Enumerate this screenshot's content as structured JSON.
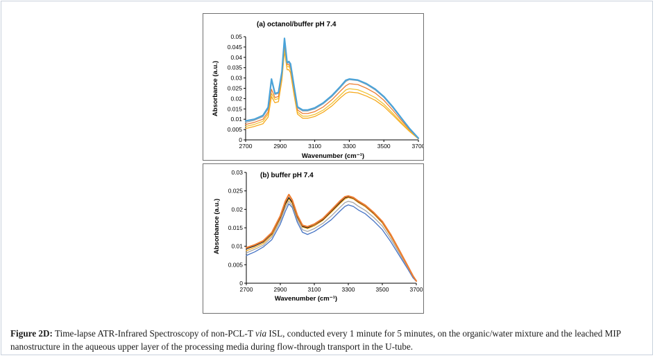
{
  "caption": {
    "lead": "Figure 2D:",
    "text_before_italic": " Time-lapse ATR-Infrared Spectroscopy of non-PCL-T ",
    "italic": "via",
    "text_after_italic": " ISL, conducted every 1 minute for 5 minutes, on the organic/water mixture and the leached MIP nanostructure in the aqueous upper layer of the processing media during flow-through transport in the U-tube."
  },
  "chart_data": [
    {
      "type": "line",
      "title": "(a) octanol/buffer pH 7.4",
      "xlabel": "Wavenumber (cm⁻¹)",
      "ylabel": "Absorbance (a.u.)",
      "xlim": [
        2700,
        3700
      ],
      "ylim": [
        0,
        0.05
      ],
      "xticks": [
        2700,
        2900,
        3100,
        3300,
        3500,
        3700
      ],
      "yticks": [
        0,
        0.005,
        0.01,
        0.015,
        0.02,
        0.025,
        0.03,
        0.035,
        0.04,
        0.045,
        0.05
      ],
      "ytick_labels": [
        "0",
        "0.005",
        "0.01",
        "0.015",
        "0.02",
        "0.025",
        "0.03",
        "0.035",
        "0.04",
        "0.045",
        "0.05"
      ],
      "x": [
        2700,
        2750,
        2800,
        2830,
        2850,
        2870,
        2890,
        2910,
        2925,
        2940,
        2950,
        2960,
        2980,
        3000,
        3030,
        3060,
        3100,
        3150,
        3200,
        3250,
        3280,
        3300,
        3350,
        3400,
        3450,
        3500,
        3550,
        3600,
        3650,
        3700
      ],
      "series": [
        {
          "color": "#f6a81c",
          "values": [
            0.0055,
            0.0065,
            0.0078,
            0.011,
            0.021,
            0.018,
            0.0185,
            0.029,
            0.043,
            0.034,
            0.034,
            0.0325,
            0.022,
            0.0125,
            0.0105,
            0.0105,
            0.0113,
            0.0135,
            0.0165,
            0.0205,
            0.0226,
            0.0232,
            0.0228,
            0.0212,
            0.0192,
            0.0162,
            0.0122,
            0.008,
            0.004,
            0.0005
          ]
        },
        {
          "color": "#f1c232",
          "values": [
            0.0065,
            0.0075,
            0.009,
            0.0125,
            0.0225,
            0.0195,
            0.02,
            0.0305,
            0.0445,
            0.0355,
            0.0355,
            0.034,
            0.0235,
            0.0135,
            0.0115,
            0.0115,
            0.0123,
            0.0145,
            0.0178,
            0.0218,
            0.0242,
            0.0248,
            0.0243,
            0.0226,
            0.0205,
            0.0173,
            0.0131,
            0.0086,
            0.0043,
            0.0006
          ]
        },
        {
          "color": "#ed7d31",
          "values": [
            0.0075,
            0.0085,
            0.01,
            0.0135,
            0.0245,
            0.0205,
            0.021,
            0.0315,
            0.0465,
            0.0365,
            0.0365,
            0.035,
            0.0245,
            0.0145,
            0.0128,
            0.0128,
            0.0137,
            0.016,
            0.0195,
            0.0238,
            0.0262,
            0.0272,
            0.0268,
            0.025,
            0.0227,
            0.0192,
            0.0146,
            0.0096,
            0.0048,
            0.0007
          ]
        },
        {
          "color": "#a5a5a5",
          "values": [
            0.0085,
            0.0095,
            0.0112,
            0.015,
            0.0285,
            0.022,
            0.0225,
            0.0325,
            0.048,
            0.037,
            0.0375,
            0.036,
            0.0258,
            0.0155,
            0.014,
            0.014,
            0.015,
            0.0175,
            0.021,
            0.0255,
            0.0283,
            0.0292,
            0.0287,
            0.0268,
            0.0242,
            0.0206,
            0.0158,
            0.0104,
            0.0052,
            0.0008
          ]
        },
        {
          "color": "#4aa3d9",
          "values": [
            0.0092,
            0.01,
            0.0118,
            0.0158,
            0.0295,
            0.0225,
            0.023,
            0.033,
            0.0492,
            0.0375,
            0.038,
            0.0368,
            0.0262,
            0.016,
            0.0145,
            0.0145,
            0.0155,
            0.018,
            0.0215,
            0.026,
            0.0289,
            0.0295,
            0.029,
            0.0272,
            0.0246,
            0.021,
            0.0162,
            0.0107,
            0.0054,
            0.0008
          ]
        }
      ]
    },
    {
      "type": "line",
      "title": "(b) buffer pH 7.4",
      "xlabel": "Wavenumber (cm⁻¹)",
      "ylabel": "Absorbance (a.u.)",
      "xlim": [
        2700,
        3700
      ],
      "ylim": [
        0,
        0.03
      ],
      "xticks": [
        2700,
        2900,
        3100,
        3300,
        3500,
        3700
      ],
      "yticks": [
        0,
        0.005,
        0.01,
        0.015,
        0.02,
        0.025,
        0.03
      ],
      "ytick_labels": [
        "0",
        "0.005",
        "0.01",
        "0.015",
        "0.02",
        "0.025",
        "0.03"
      ],
      "x": [
        2700,
        2750,
        2800,
        2850,
        2900,
        2930,
        2950,
        2970,
        3000,
        3030,
        3060,
        3100,
        3150,
        3200,
        3250,
        3280,
        3300,
        3330,
        3360,
        3400,
        3450,
        3500,
        3550,
        3600,
        3650,
        3680,
        3700
      ],
      "series": [
        {
          "color": "#4472c4",
          "values": [
            0.0075,
            0.0085,
            0.0098,
            0.0118,
            0.016,
            0.0195,
            0.0215,
            0.0205,
            0.0165,
            0.0138,
            0.0132,
            0.014,
            0.0155,
            0.0172,
            0.0195,
            0.0208,
            0.0212,
            0.0208,
            0.0198,
            0.0188,
            0.0168,
            0.0145,
            0.0112,
            0.0075,
            0.0038,
            0.0015,
            0.0005
          ]
        },
        {
          "color": "#a5a5a5",
          "values": [
            0.0082,
            0.0092,
            0.0103,
            0.0125,
            0.0168,
            0.0205,
            0.0222,
            0.021,
            0.0172,
            0.0145,
            0.014,
            0.0148,
            0.0162,
            0.0182,
            0.0205,
            0.0218,
            0.0222,
            0.0218,
            0.0208,
            0.0197,
            0.0178,
            0.0155,
            0.012,
            0.0081,
            0.0042,
            0.0018,
            0.0006
          ]
        },
        {
          "color": "#f6a81c",
          "values": [
            0.0088,
            0.0097,
            0.0108,
            0.013,
            0.0175,
            0.0212,
            0.0228,
            0.0216,
            0.0178,
            0.0152,
            0.0148,
            0.0155,
            0.017,
            0.0192,
            0.0215,
            0.0228,
            0.0232,
            0.0228,
            0.0218,
            0.0207,
            0.0187,
            0.0163,
            0.0127,
            0.0086,
            0.0045,
            0.002,
            0.0006
          ]
        },
        {
          "color": "#1a1a1a",
          "values": [
            0.0093,
            0.0101,
            0.0112,
            0.0134,
            0.0178,
            0.0215,
            0.0232,
            0.0219,
            0.018,
            0.0154,
            0.015,
            0.0158,
            0.0172,
            0.0195,
            0.0218,
            0.0231,
            0.0234,
            0.023,
            0.022,
            0.0209,
            0.0189,
            0.0165,
            0.0129,
            0.0088,
            0.0046,
            0.002,
            0.0006
          ]
        },
        {
          "color": "#ed7d31",
          "values": [
            0.0096,
            0.0104,
            0.0115,
            0.0137,
            0.0182,
            0.0222,
            0.024,
            0.0225,
            0.0184,
            0.0157,
            0.0153,
            0.016,
            0.0175,
            0.0198,
            0.0222,
            0.0234,
            0.0236,
            0.0232,
            0.0222,
            0.0211,
            0.0191,
            0.0167,
            0.0131,
            0.0089,
            0.0046,
            0.002,
            0.0006
          ]
        }
      ]
    }
  ]
}
